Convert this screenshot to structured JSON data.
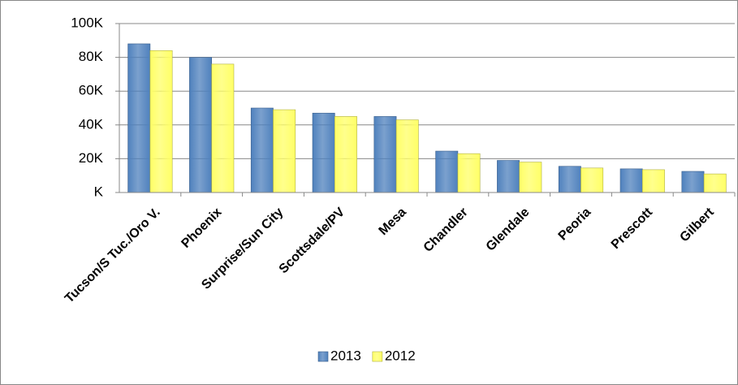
{
  "chart_data": {
    "type": "bar",
    "categories": [
      "Tucson/S Tuc./Oro V.",
      "Phoenix",
      "Surprise/Sun City",
      "Scottsdale/PV",
      "Mesa",
      "Chandler",
      "Glendale",
      "Peoria",
      "Prescott",
      "Gilbert"
    ],
    "series": [
      {
        "name": "2013",
        "color": "#4f81bd",
        "values": [
          88,
          80,
          50,
          47,
          45,
          24.5,
          19,
          15.5,
          14,
          12.5
        ]
      },
      {
        "name": "2012",
        "color": "#ffff66",
        "values": [
          84,
          76,
          49,
          45,
          43,
          23,
          18,
          14.5,
          13.5,
          11
        ]
      }
    ],
    "ylim": [
      0,
      100
    ],
    "yticks": [
      {
        "value": 0,
        "label": "K"
      },
      {
        "value": 20,
        "label": "20K"
      },
      {
        "value": 40,
        "label": "40K"
      },
      {
        "value": 60,
        "label": "60K"
      },
      {
        "value": 80,
        "label": "80K"
      },
      {
        "value": 100,
        "label": "100K"
      }
    ],
    "grid": true,
    "legend": "bottom"
  }
}
